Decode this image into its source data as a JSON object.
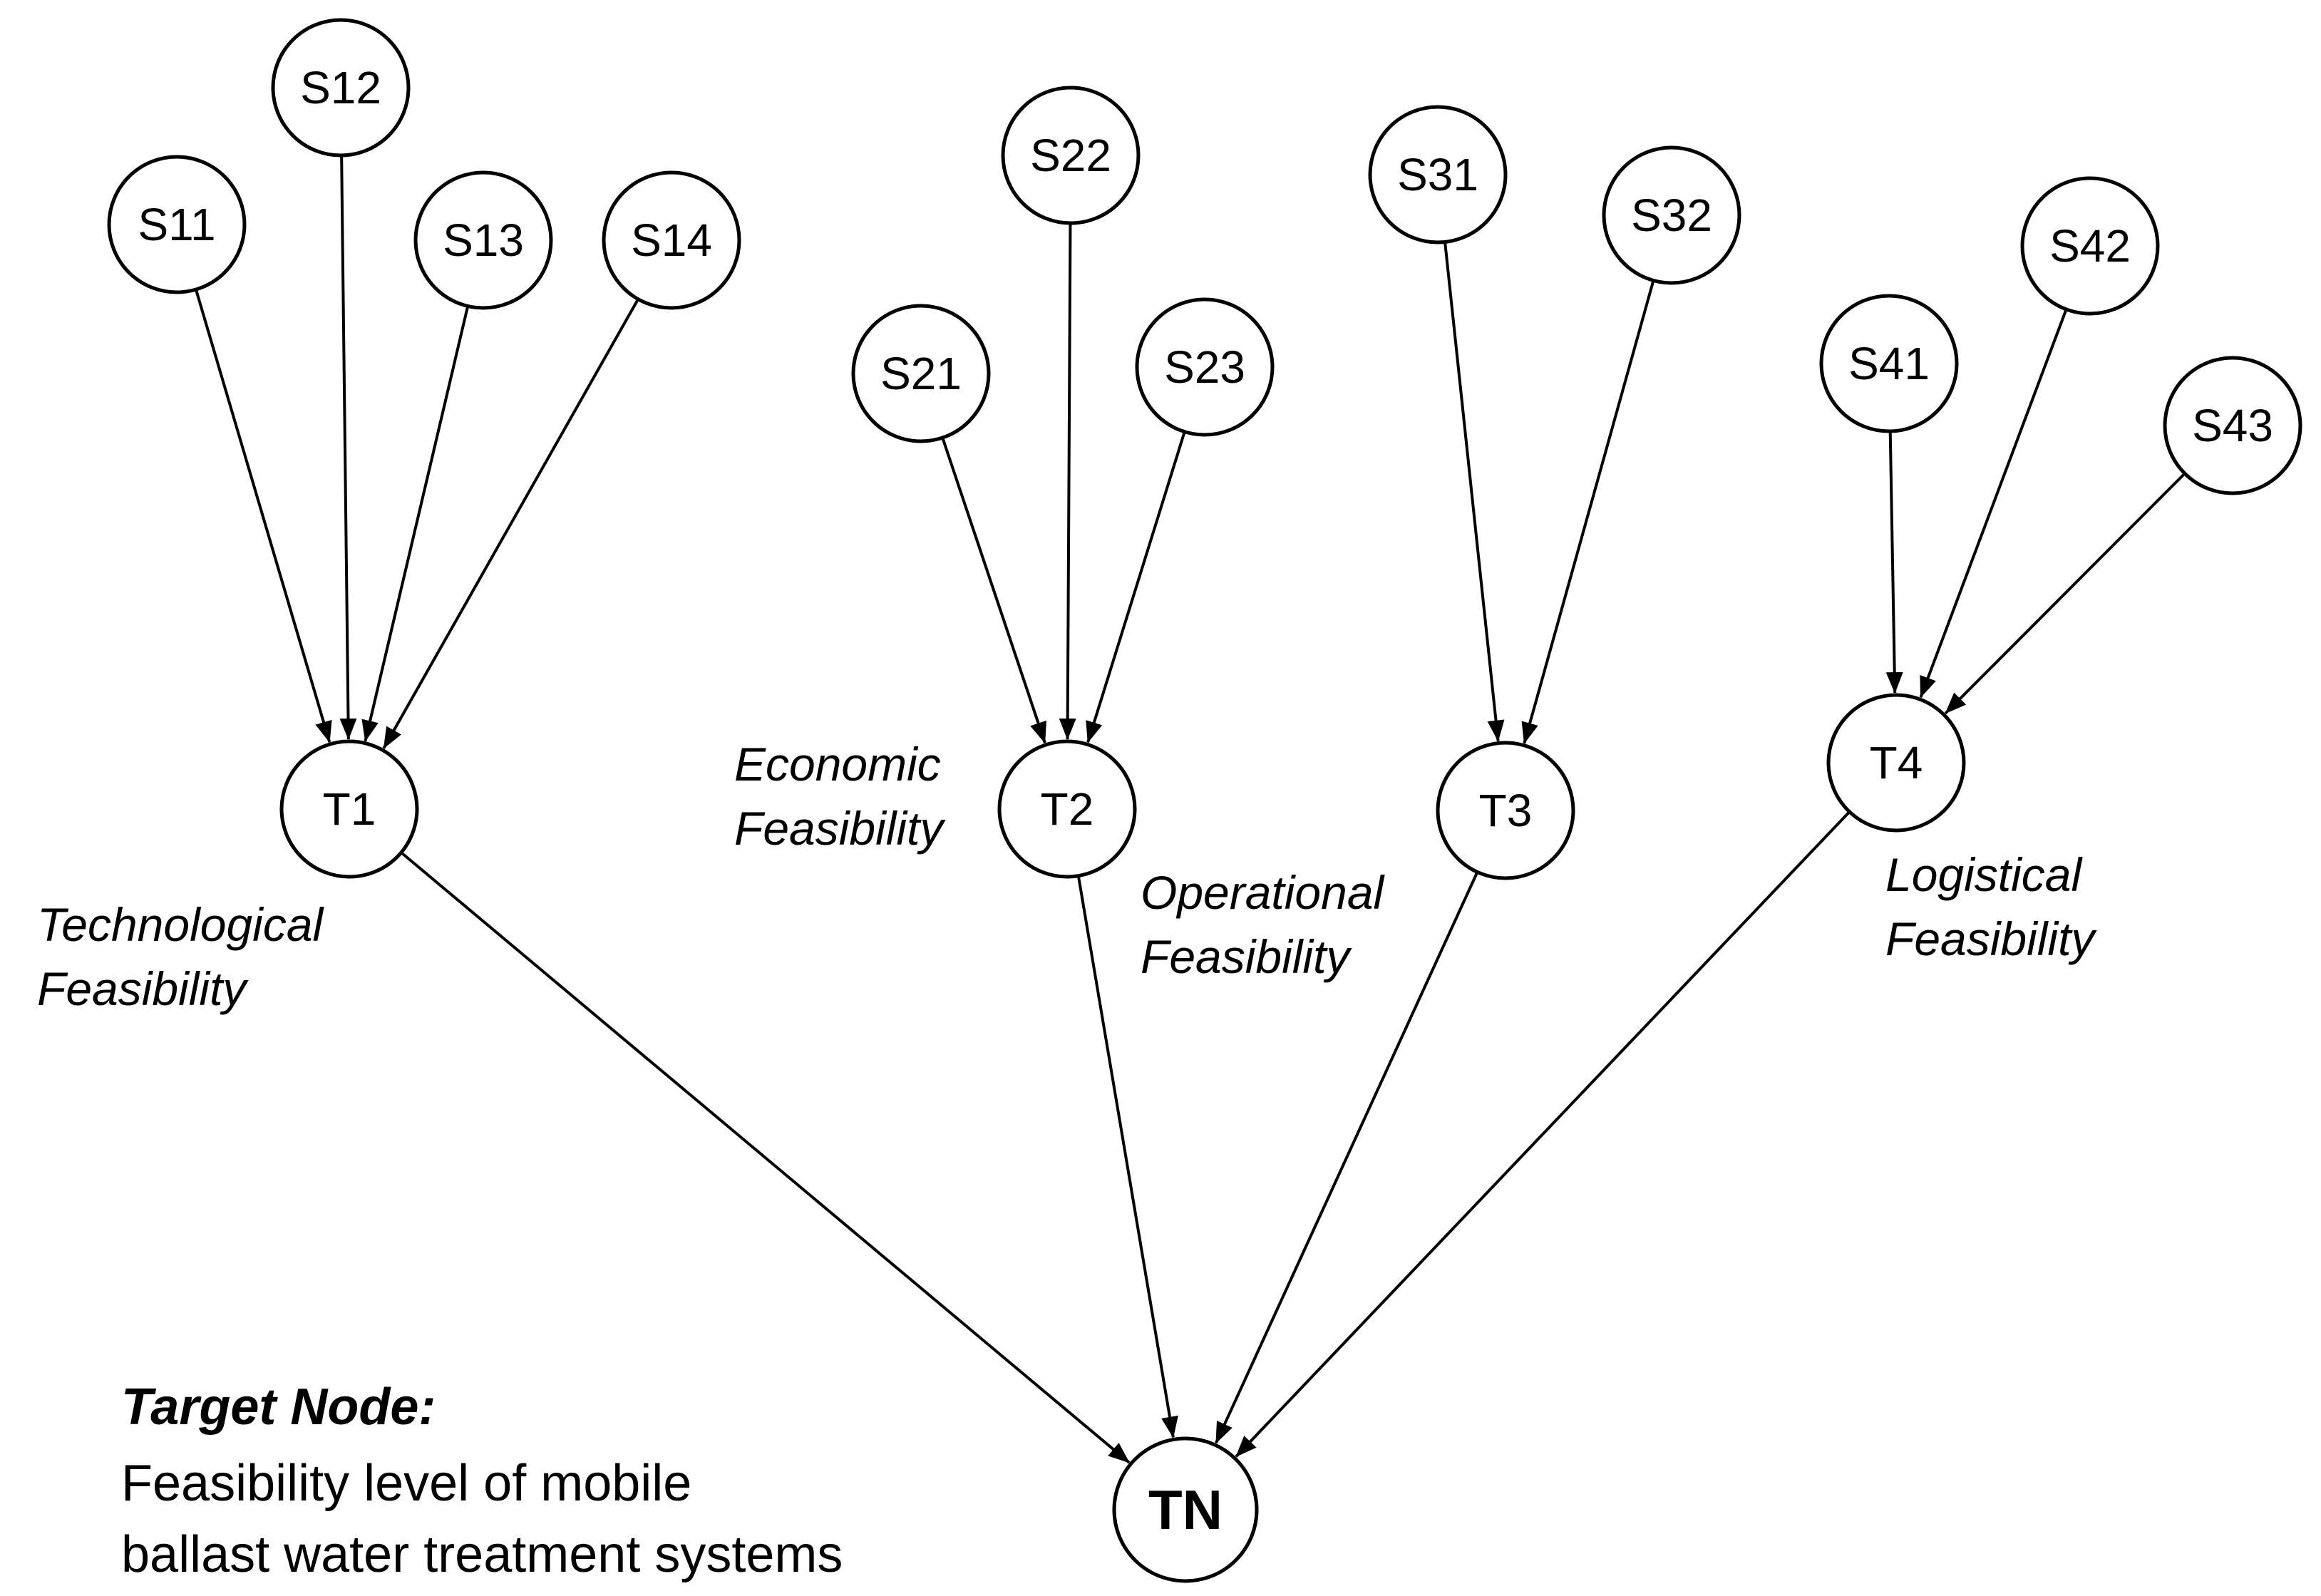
{
  "nodes": {
    "S11": "S11",
    "S12": "S12",
    "S13": "S13",
    "S14": "S14",
    "S21": "S21",
    "S22": "S22",
    "S23": "S23",
    "S31": "S31",
    "S32": "S32",
    "S41": "S41",
    "S42": "S42",
    "S43": "S43",
    "T1": "T1",
    "T2": "T2",
    "T3": "T3",
    "T4": "T4",
    "TN": "TN"
  },
  "groups": {
    "T1": [
      "Technological",
      "Feasibility"
    ],
    "T2": [
      "Economic",
      "Feasibility"
    ],
    "T3": [
      "Operational",
      "Feasibility"
    ],
    "T4": [
      "Logistical",
      "Feasibility"
    ]
  },
  "target": {
    "title": "Target Node:",
    "line1": "Feasibility level of mobile",
    "line2": "ballast water treatment systems"
  },
  "edges": [
    [
      "S11",
      "T1"
    ],
    [
      "S12",
      "T1"
    ],
    [
      "S13",
      "T1"
    ],
    [
      "S14",
      "T1"
    ],
    [
      "S21",
      "T2"
    ],
    [
      "S22",
      "T2"
    ],
    [
      "S23",
      "T2"
    ],
    [
      "S31",
      "T3"
    ],
    [
      "S32",
      "T3"
    ],
    [
      "S41",
      "T4"
    ],
    [
      "S42",
      "T4"
    ],
    [
      "S43",
      "T4"
    ],
    [
      "T1",
      "TN"
    ],
    [
      "T2",
      "TN"
    ],
    [
      "T3",
      "TN"
    ],
    [
      "T4",
      "TN"
    ]
  ]
}
